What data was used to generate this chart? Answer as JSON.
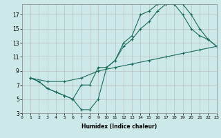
{
  "xlabel": "Humidex (Indice chaleur)",
  "bg_color": "#cce8e8",
  "grid_color": "#b8b8b8",
  "line_color": "#1a6b5a",
  "line1_x": [
    1,
    2,
    3,
    4,
    5,
    6,
    7,
    8,
    9,
    10,
    11,
    12,
    13,
    14,
    15,
    16,
    17,
    18,
    19,
    20,
    21,
    22,
    23
  ],
  "line1_y": [
    8,
    7.5,
    6.5,
    6,
    5.5,
    5,
    3.5,
    3.5,
    5,
    9.5,
    10.5,
    13,
    14,
    17,
    17.5,
    18.5,
    18.5,
    18.5,
    18.5,
    17,
    15,
    13.5,
    12.5
  ],
  "line2_x": [
    1,
    2,
    3,
    4,
    5,
    6,
    7,
    8,
    9,
    10,
    11,
    12,
    13,
    14,
    15,
    16,
    17,
    18,
    19,
    20,
    21,
    22,
    23
  ],
  "line2_y": [
    8,
    7.5,
    6.5,
    6,
    5.5,
    5,
    7,
    7,
    9.5,
    9.5,
    10.5,
    12.5,
    13.5,
    15,
    16,
    17.5,
    18.5,
    18.5,
    17,
    15,
    14,
    13.5,
    12.5
  ],
  "line3_x": [
    1,
    3,
    5,
    7,
    9,
    11,
    13,
    15,
    17,
    19,
    21,
    23
  ],
  "line3_y": [
    8,
    7.5,
    7.5,
    8,
    9,
    9.5,
    10,
    10.5,
    11,
    11.5,
    12,
    12.5
  ],
  "xlim": [
    0,
    23
  ],
  "ylim": [
    3,
    18.5
  ],
  "xticks": [
    0,
    1,
    2,
    3,
    4,
    5,
    6,
    7,
    8,
    9,
    10,
    11,
    12,
    13,
    14,
    15,
    16,
    17,
    18,
    19,
    20,
    21,
    22,
    23
  ],
  "yticks": [
    3,
    5,
    7,
    9,
    11,
    13,
    15,
    17
  ]
}
